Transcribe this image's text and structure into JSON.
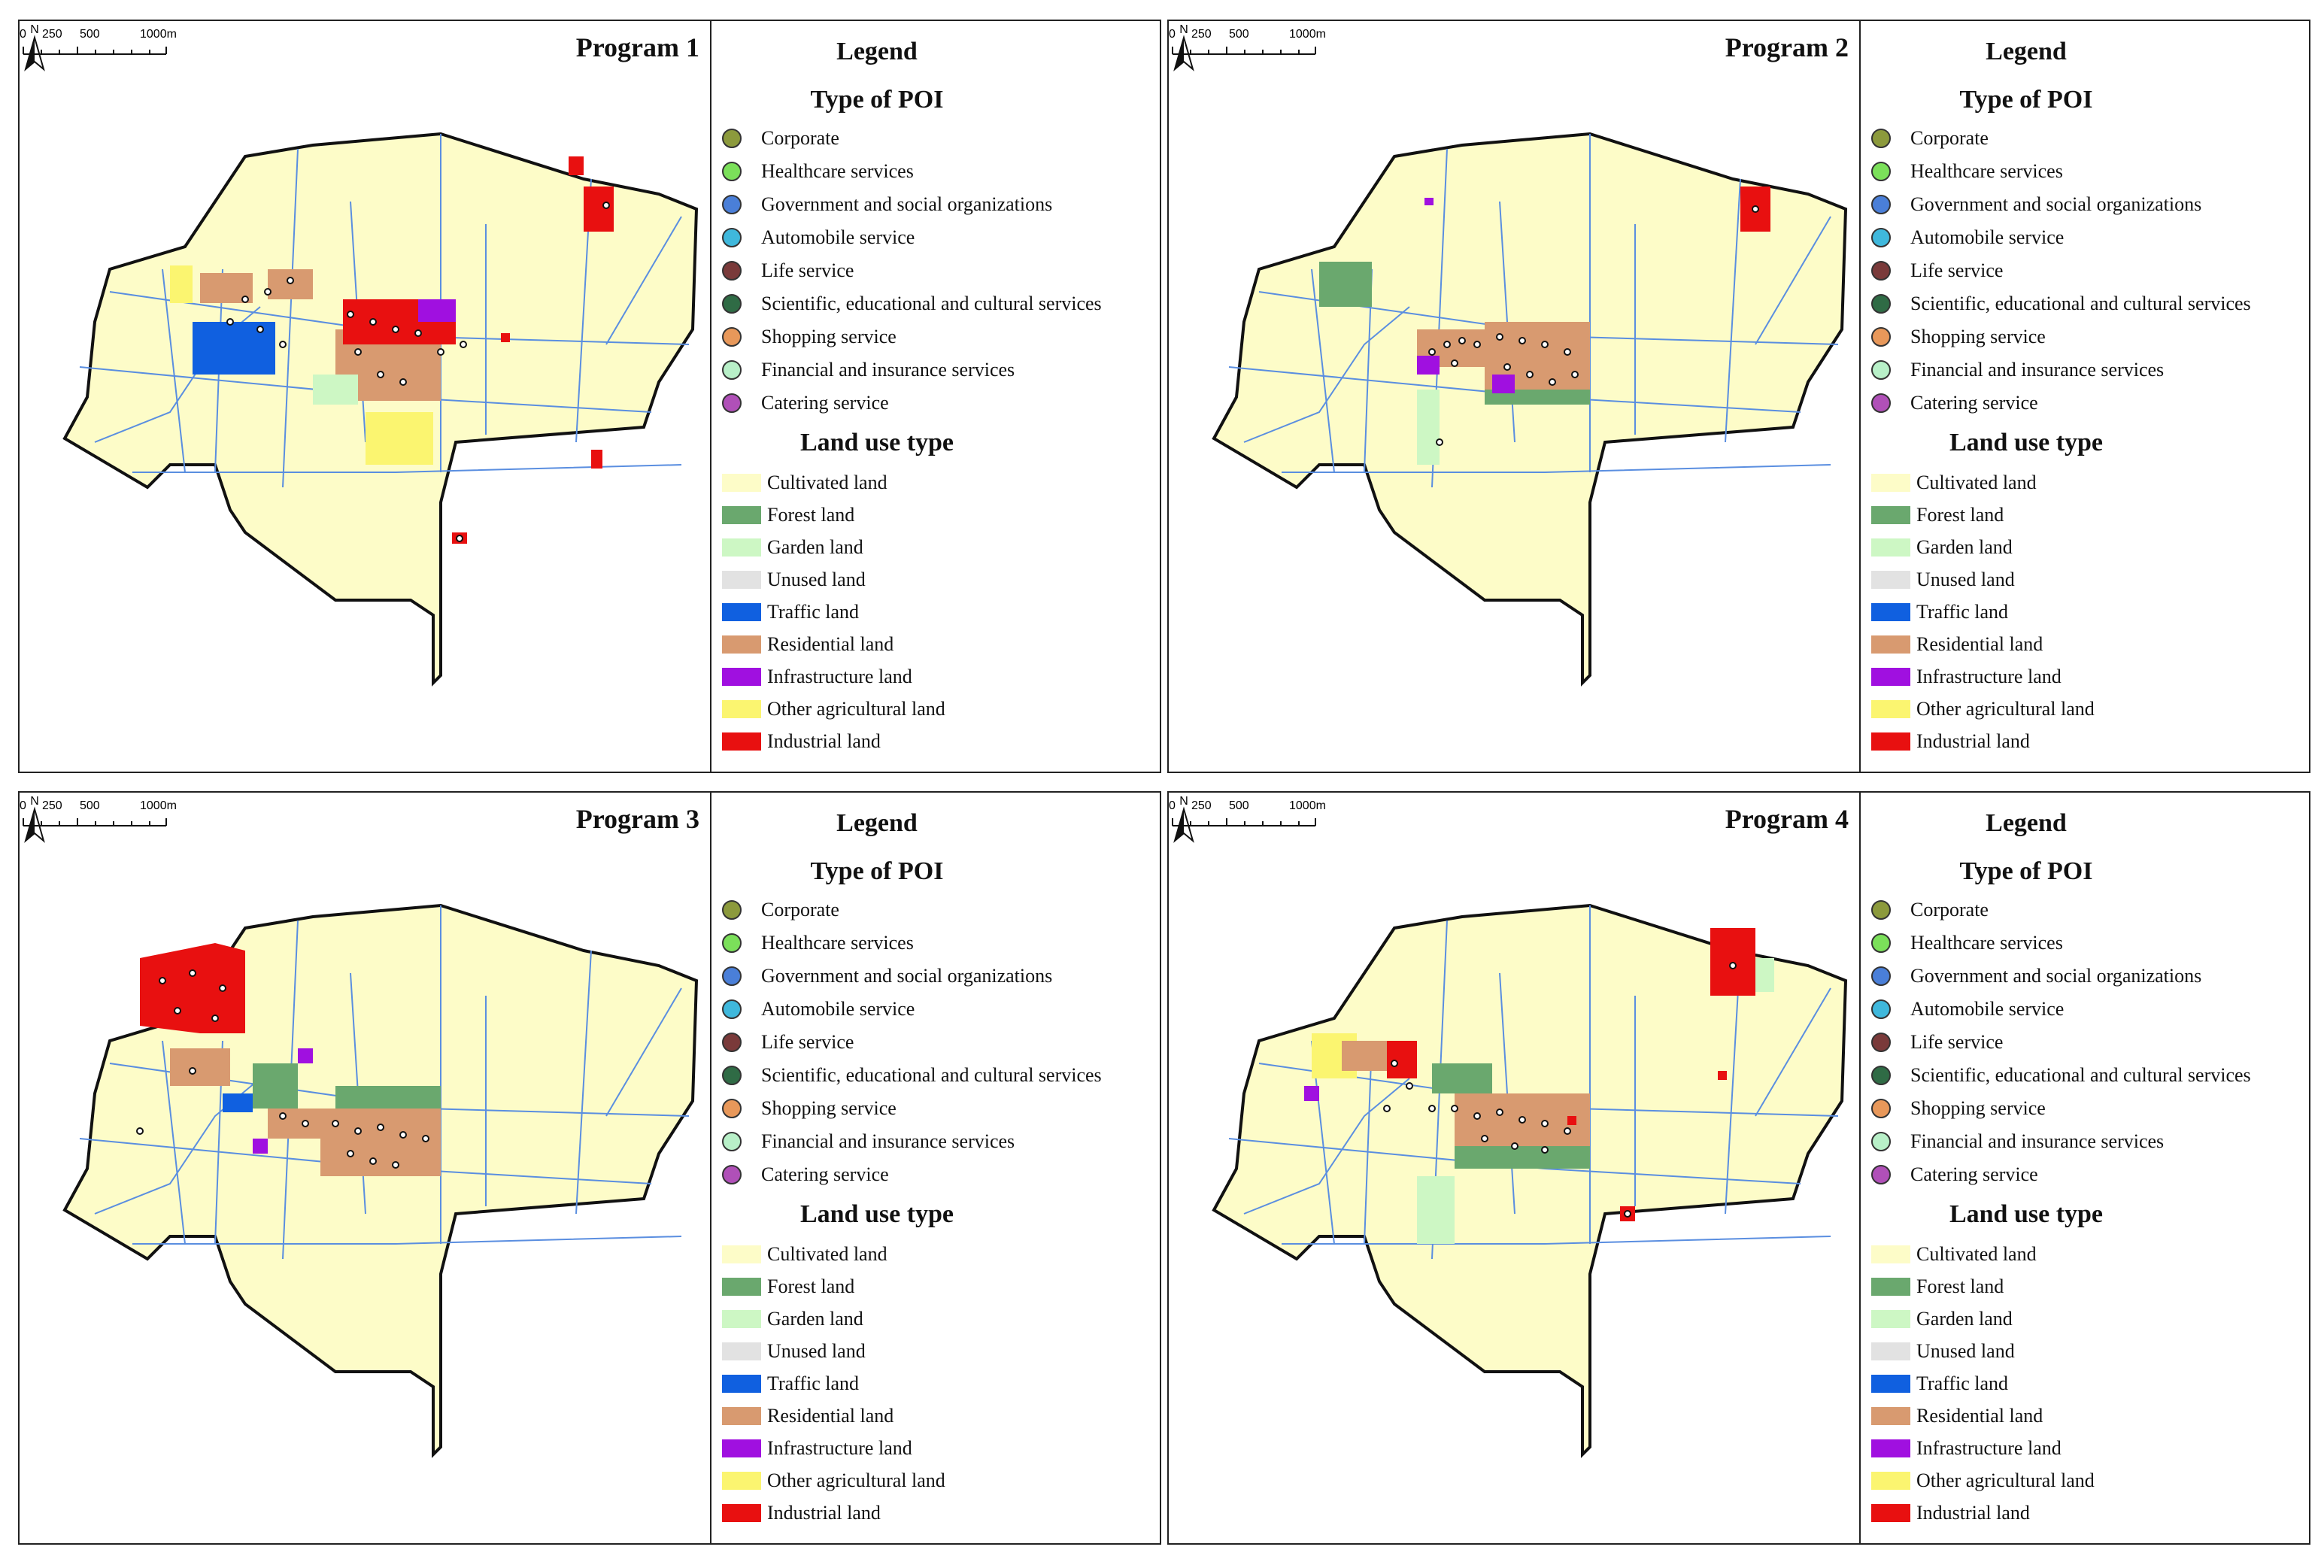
{
  "legend": {
    "title": "Legend",
    "poi_heading": "Type of POI",
    "poi_types": [
      {
        "label": "Corporate",
        "color": "#8c9a3c"
      },
      {
        "label": "Healthcare services",
        "color": "#7be05a"
      },
      {
        "label": "Government and social organizations",
        "color": "#4a7fd8"
      },
      {
        "label": "Automobile service",
        "color": "#3fb8dc"
      },
      {
        "label": "Life service",
        "color": "#7a3a3a"
      },
      {
        "label": "Scientific, educational and cultural services",
        "color": "#2f6b45"
      },
      {
        "label": "Shopping service",
        "color": "#e8985a"
      },
      {
        "label": "Financial and insurance services",
        "color": "#b8f0c8"
      },
      {
        "label": "Catering service",
        "color": "#b050b8"
      }
    ],
    "land_heading": "Land use type",
    "land_types": [
      {
        "label": "Cultivated land",
        "color": "#fdfcc8"
      },
      {
        "label": "Forest land",
        "color": "#6aa86e"
      },
      {
        "label": "Garden land",
        "color": "#cdf7c4"
      },
      {
        "label": "Unused land",
        "color": "#e2e2e2"
      },
      {
        "label": "Traffic land",
        "color": "#1060e0"
      },
      {
        "label": "Residential land",
        "color": "#d89a70"
      },
      {
        "label": "Infrastructure land",
        "color": "#a010e0"
      },
      {
        "label": "Other agricultural land",
        "color": "#fbf570"
      },
      {
        "label": "Industrial land",
        "color": "#e81010"
      }
    ]
  },
  "scale_labels": [
    "0",
    "250",
    "500",
    "1000m"
  ],
  "north_label": "N",
  "panels": [
    {
      "title": "Program 1"
    },
    {
      "title": "Program 2"
    },
    {
      "title": "Program 3"
    },
    {
      "title": "Program 4"
    }
  ]
}
